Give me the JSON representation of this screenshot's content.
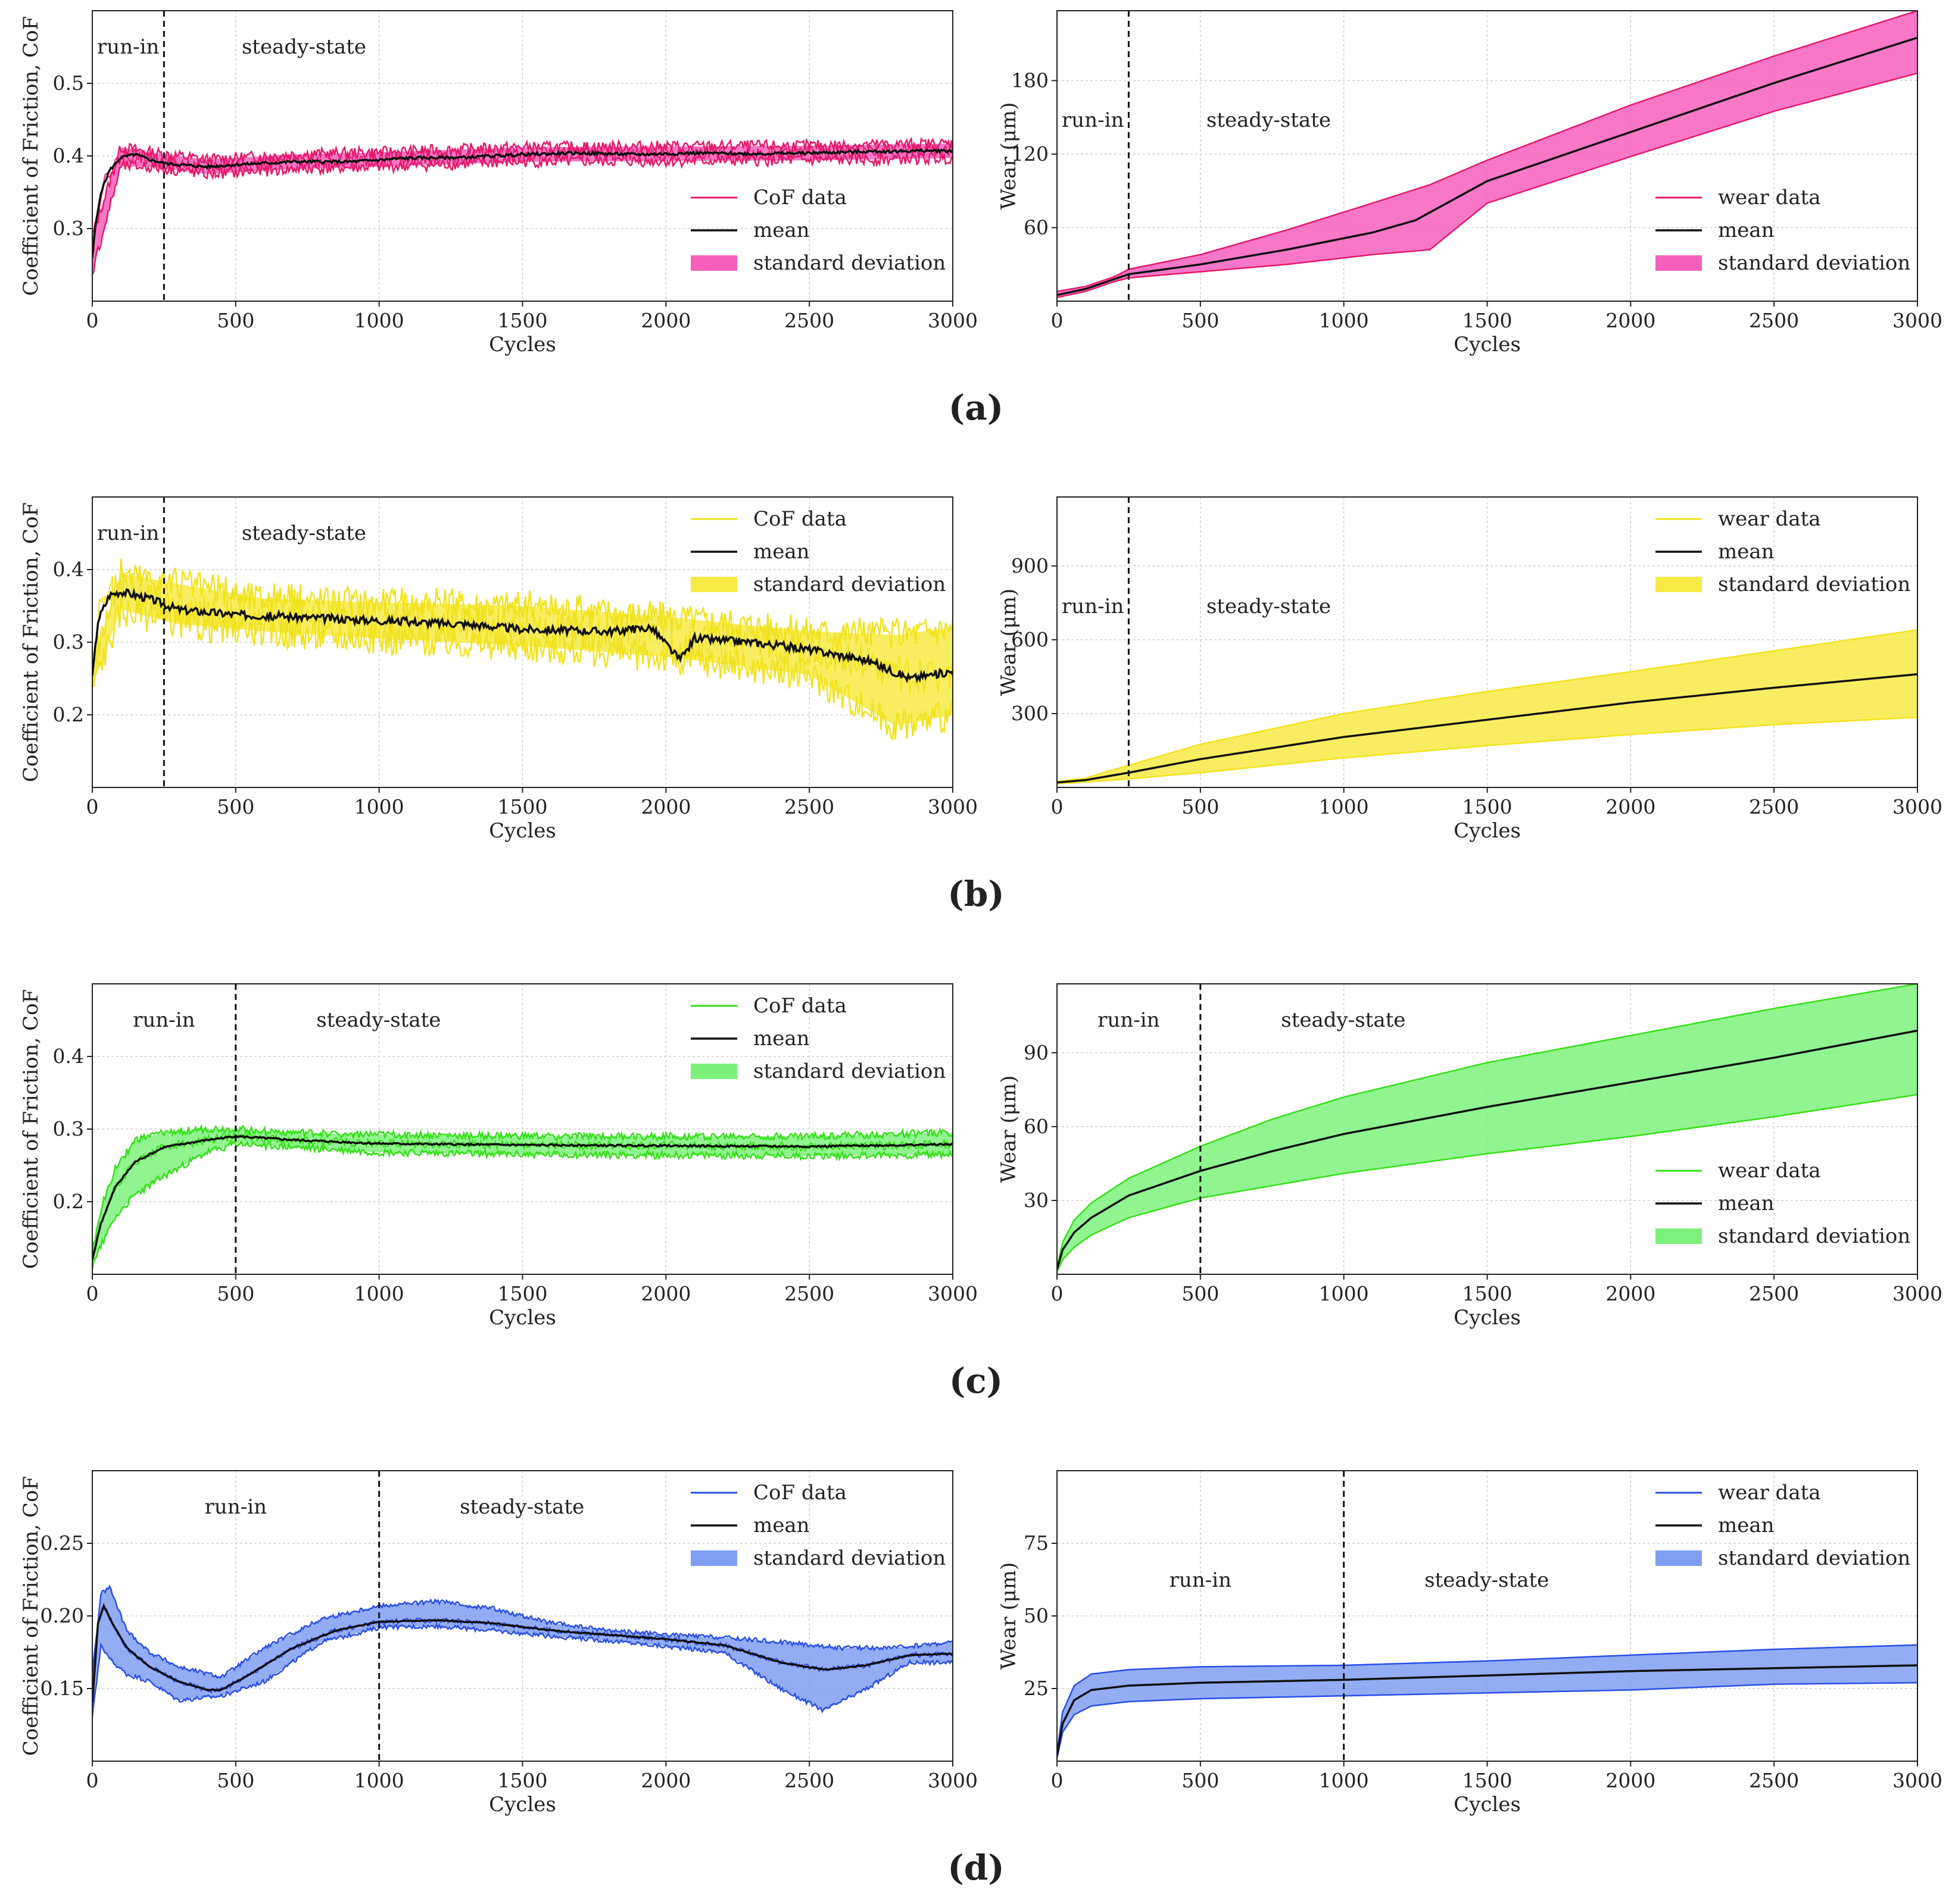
{
  "panel_captions": [
    "(a)",
    "(b)",
    "(c)",
    "(d)"
  ],
  "colors": {
    "pink": "#e6196a",
    "pink_fill": "#f75fbd",
    "yellow": "#f2e21c",
    "yellow_fill": "#f7ea45",
    "green": "#34e016",
    "green_fill": "#7cf27c",
    "blue": "#2a4fe8",
    "blue_fill": "#7f9ff2",
    "mean": "#111111"
  },
  "chart_data": [
    {
      "id": "a-cof",
      "row": 0,
      "col": 0,
      "type": "line",
      "kind": "cof",
      "xlabel": "Cycles",
      "ylabel": "Coefficient of Friction, CoF",
      "xlim": [
        0,
        3000
      ],
      "ylim": [
        0.2,
        0.6
      ],
      "xticks": [
        0,
        500,
        1000,
        1500,
        2000,
        2500,
        3000
      ],
      "xtick_labels": [
        "0",
        "500",
        "1000",
        "1500",
        "2000",
        "2500",
        "3000"
      ],
      "yticks": [
        0.3,
        0.4,
        0.5
      ],
      "ytick_labels": [
        "0.3",
        "0.4",
        "0.5"
      ],
      "boundary": 250,
      "regions": [
        "run-in",
        "steady-state"
      ],
      "region_label_pos": "top",
      "legend": "right-middle",
      "legend_entries": [
        "CoF data",
        "mean",
        "standard deviation"
      ],
      "color": "pink",
      "mean": {
        "x": [
          0,
          10,
          30,
          60,
          100,
          150,
          200,
          250,
          300,
          400,
          500,
          700,
          900,
          1100,
          1300,
          1500,
          1700,
          1900,
          2100,
          2300,
          2500,
          2700,
          2900,
          3000
        ],
        "y": [
          0.26,
          0.3,
          0.35,
          0.38,
          0.398,
          0.402,
          0.395,
          0.39,
          0.388,
          0.385,
          0.388,
          0.392,
          0.392,
          0.397,
          0.398,
          0.402,
          0.404,
          0.402,
          0.404,
          0.403,
          0.404,
          0.406,
          0.407,
          0.407
        ]
      },
      "upper": {
        "x": [
          0,
          100,
          200,
          400,
          700,
          1000,
          1500,
          2000,
          2500,
          3000
        ],
        "y": [
          0.29,
          0.412,
          0.405,
          0.395,
          0.402,
          0.405,
          0.412,
          0.413,
          0.414,
          0.417
        ]
      },
      "lower": {
        "x": [
          0,
          100,
          200,
          400,
          700,
          1000,
          1500,
          2000,
          2500,
          3000
        ],
        "y": [
          0.24,
          0.386,
          0.385,
          0.375,
          0.382,
          0.385,
          0.392,
          0.393,
          0.394,
          0.397
        ]
      },
      "noise": 0.008
    },
    {
      "id": "a-wear",
      "row": 0,
      "col": 1,
      "type": "line",
      "kind": "wear",
      "xlabel": "Cycles",
      "ylabel": "Wear (μm)",
      "xlim": [
        0,
        3000
      ],
      "ylim": [
        0,
        237
      ],
      "xticks": [
        0,
        500,
        1000,
        1500,
        2000,
        2500,
        3000
      ],
      "xtick_labels": [
        "0",
        "500",
        "1000",
        "1500",
        "2000",
        "2500",
        "3000"
      ],
      "yticks": [
        60,
        120,
        180
      ],
      "ytick_labels": [
        "60",
        "120",
        "180"
      ],
      "boundary": 250,
      "regions": [
        "run-in",
        "steady-state"
      ],
      "region_label_pos": "upper-middle",
      "legend": "right-middle",
      "legend_entries": [
        "wear data",
        "mean",
        "standard deviation"
      ],
      "color": "pink",
      "mean": {
        "x": [
          0,
          100,
          200,
          250,
          500,
          800,
          1100,
          1250,
          1500,
          2000,
          2500,
          3000
        ],
        "y": [
          5,
          10,
          18,
          22,
          30,
          42,
          56,
          66,
          98,
          138,
          178,
          215
        ]
      },
      "upper": {
        "x": [
          0,
          100,
          200,
          250,
          500,
          800,
          1100,
          1300,
          1500,
          2000,
          2500,
          3000
        ],
        "y": [
          8,
          12,
          20,
          26,
          38,
          58,
          80,
          95,
          115,
          160,
          200,
          237
        ]
      },
      "lower": {
        "x": [
          0,
          100,
          200,
          250,
          500,
          800,
          1100,
          1300,
          1500,
          2000,
          2500,
          3000
        ],
        "y": [
          3,
          8,
          16,
          19,
          24,
          30,
          38,
          42,
          80,
          118,
          155,
          186
        ]
      },
      "noise": 0
    },
    {
      "id": "b-cof",
      "row": 1,
      "col": 0,
      "type": "line",
      "kind": "cof",
      "xlabel": "Cycles",
      "ylabel": "Coefficient of Friction, CoF",
      "xlim": [
        0,
        3000
      ],
      "ylim": [
        0.1,
        0.5
      ],
      "xticks": [
        0,
        500,
        1000,
        1500,
        2000,
        2500,
        3000
      ],
      "xtick_labels": [
        "0",
        "500",
        "1000",
        "1500",
        "2000",
        "2500",
        "3000"
      ],
      "yticks": [
        0.2,
        0.3,
        0.4
      ],
      "ytick_labels": [
        "0.2",
        "0.3",
        "0.4"
      ],
      "boundary": 250,
      "regions": [
        "run-in",
        "steady-state"
      ],
      "region_label_pos": "top",
      "legend": "top-right",
      "legend_entries": [
        "CoF data",
        "mean",
        "standard deviation"
      ],
      "color": "yellow",
      "mean": {
        "x": [
          0,
          20,
          60,
          100,
          200,
          300,
          500,
          700,
          1000,
          1300,
          1500,
          1800,
          1950,
          2050,
          2100,
          2300,
          2500,
          2700,
          2850,
          3000
        ],
        "y": [
          0.25,
          0.33,
          0.365,
          0.37,
          0.36,
          0.345,
          0.338,
          0.335,
          0.33,
          0.325,
          0.318,
          0.315,
          0.32,
          0.275,
          0.305,
          0.3,
          0.29,
          0.275,
          0.25,
          0.26
        ]
      },
      "upper": {
        "x": [
          0,
          100,
          300,
          600,
          1000,
          1500,
          2000,
          2500,
          2800,
          3000
        ],
        "y": [
          0.27,
          0.395,
          0.38,
          0.36,
          0.355,
          0.35,
          0.335,
          0.315,
          0.31,
          0.32
        ]
      },
      "lower": {
        "x": [
          0,
          100,
          300,
          600,
          1000,
          1500,
          2000,
          2500,
          2800,
          3000
        ],
        "y": [
          0.24,
          0.345,
          0.325,
          0.315,
          0.305,
          0.295,
          0.28,
          0.255,
          0.185,
          0.2
        ]
      },
      "noise": 0.022
    },
    {
      "id": "b-wear",
      "row": 1,
      "col": 1,
      "type": "line",
      "kind": "wear",
      "xlabel": "Cycles",
      "ylabel": "Wear (μm)",
      "xlim": [
        0,
        3000
      ],
      "ylim": [
        0,
        1180
      ],
      "xticks": [
        0,
        500,
        1000,
        1500,
        2000,
        2500,
        3000
      ],
      "xtick_labels": [
        "0",
        "500",
        "1000",
        "1500",
        "2000",
        "2500",
        "3000"
      ],
      "yticks": [
        300,
        600,
        900
      ],
      "ytick_labels": [
        "300",
        "600",
        "900"
      ],
      "boundary": 250,
      "regions": [
        "run-in",
        "steady-state"
      ],
      "region_label_pos": "upper-middle",
      "legend": "top-right",
      "legend_entries": [
        "wear data",
        "mean",
        "standard deviation"
      ],
      "color": "yellow",
      "mean": {
        "x": [
          0,
          100,
          250,
          500,
          1000,
          1500,
          2000,
          2500,
          3000
        ],
        "y": [
          20,
          30,
          60,
          115,
          205,
          275,
          345,
          405,
          460
        ]
      },
      "upper": {
        "x": [
          0,
          100,
          250,
          500,
          1000,
          1500,
          2000,
          2500,
          3000
        ],
        "y": [
          25,
          38,
          90,
          175,
          300,
          390,
          470,
          555,
          640
        ]
      },
      "lower": {
        "x": [
          0,
          100,
          250,
          500,
          1000,
          1500,
          2000,
          2500,
          3000
        ],
        "y": [
          15,
          22,
          35,
          60,
          120,
          170,
          215,
          255,
          285
        ]
      },
      "noise": 0
    },
    {
      "id": "c-cof",
      "row": 2,
      "col": 0,
      "type": "line",
      "kind": "cof",
      "xlabel": "Cycles",
      "ylabel": "Coefficient of Friction, CoF",
      "xlim": [
        0,
        3000
      ],
      "ylim": [
        0.1,
        0.5
      ],
      "xticks": [
        0,
        500,
        1000,
        1500,
        2000,
        2500,
        3000
      ],
      "xtick_labels": [
        "0",
        "500",
        "1000",
        "1500",
        "2000",
        "2500",
        "3000"
      ],
      "yticks": [
        0.2,
        0.3,
        0.4
      ],
      "ytick_labels": [
        "0.2",
        "0.3",
        "0.4"
      ],
      "boundary": 500,
      "regions": [
        "run-in",
        "steady-state"
      ],
      "region_label_pos": "top",
      "legend": "top-right",
      "legend_entries": [
        "CoF data",
        "mean",
        "standard deviation"
      ],
      "color": "green",
      "mean": {
        "x": [
          0,
          30,
          80,
          150,
          250,
          400,
          500,
          700,
          1000,
          1500,
          2000,
          2500,
          3000
        ],
        "y": [
          0.12,
          0.17,
          0.22,
          0.255,
          0.275,
          0.285,
          0.29,
          0.285,
          0.28,
          0.278,
          0.277,
          0.276,
          0.279
        ]
      },
      "upper": {
        "x": [
          0,
          30,
          80,
          150,
          250,
          400,
          500,
          700,
          1000,
          1500,
          2000,
          2500,
          3000
        ],
        "y": [
          0.13,
          0.19,
          0.245,
          0.285,
          0.295,
          0.3,
          0.3,
          0.295,
          0.292,
          0.29,
          0.29,
          0.29,
          0.295
        ]
      },
      "lower": {
        "x": [
          0,
          30,
          80,
          150,
          250,
          400,
          500,
          700,
          1000,
          1500,
          2000,
          2500,
          3000
        ],
        "y": [
          0.11,
          0.14,
          0.18,
          0.21,
          0.235,
          0.268,
          0.28,
          0.275,
          0.268,
          0.265,
          0.264,
          0.263,
          0.265
        ]
      },
      "noise": 0.005
    },
    {
      "id": "c-wear",
      "row": 2,
      "col": 1,
      "type": "line",
      "kind": "wear",
      "xlabel": "Cycles",
      "ylabel": "Wear (μm)",
      "xlim": [
        0,
        3000
      ],
      "ylim": [
        0,
        118
      ],
      "xticks": [
        0,
        500,
        1000,
        1500,
        2000,
        2500,
        3000
      ],
      "xtick_labels": [
        "0",
        "500",
        "1000",
        "1500",
        "2000",
        "2500",
        "3000"
      ],
      "yticks": [
        30,
        60,
        90
      ],
      "ytick_labels": [
        "30",
        "60",
        "90"
      ],
      "boundary": 500,
      "regions": [
        "run-in",
        "steady-state"
      ],
      "region_label_pos": "top",
      "legend": "right-lower",
      "legend_entries": [
        "wear data",
        "mean",
        "standard deviation"
      ],
      "color": "green",
      "mean": {
        "x": [
          0,
          20,
          60,
          120,
          250,
          500,
          750,
          1000,
          1500,
          2000,
          2500,
          3000
        ],
        "y": [
          2,
          10,
          17,
          23,
          32,
          42,
          50,
          57,
          68,
          78,
          88,
          99
        ]
      },
      "upper": {
        "x": [
          0,
          20,
          60,
          120,
          250,
          500,
          750,
          1000,
          1500,
          2000,
          2500,
          3000
        ],
        "y": [
          3,
          13,
          22,
          29,
          39,
          52,
          63,
          72,
          86,
          97,
          108,
          118
        ]
      },
      "lower": {
        "x": [
          0,
          20,
          60,
          120,
          250,
          500,
          750,
          1000,
          1500,
          2000,
          2500,
          3000
        ],
        "y": [
          1,
          6,
          11,
          16,
          23,
          31,
          36,
          41,
          49,
          56,
          64,
          73
        ]
      },
      "noise": 0
    },
    {
      "id": "d-cof",
      "row": 3,
      "col": 0,
      "type": "line",
      "kind": "cof",
      "xlabel": "Cycles",
      "ylabel": "Coefficient of Friction, CoF",
      "xlim": [
        0,
        3000
      ],
      "ylim": [
        0.1,
        0.3
      ],
      "xticks": [
        0,
        500,
        1000,
        1500,
        2000,
        2500,
        3000
      ],
      "xtick_labels": [
        "0",
        "500",
        "1000",
        "1500",
        "2000",
        "2500",
        "3000"
      ],
      "yticks": [
        0.15,
        0.2,
        0.25
      ],
      "ytick_labels": [
        "0.15",
        "0.20",
        "0.25"
      ],
      "boundary": 1000,
      "regions": [
        "run-in",
        "steady-state"
      ],
      "region_label_pos": "top",
      "legend": "top-right",
      "legend_entries": [
        "CoF data",
        "mean",
        "standard deviation"
      ],
      "color": "blue",
      "mean": {
        "x": [
          0,
          20,
          40,
          70,
          120,
          200,
          300,
          400,
          450,
          550,
          700,
          850,
          1000,
          1200,
          1400,
          1600,
          1800,
          2000,
          2200,
          2400,
          2550,
          2700,
          2850,
          3000
        ],
        "y": [
          0.14,
          0.195,
          0.207,
          0.195,
          0.178,
          0.165,
          0.155,
          0.149,
          0.149,
          0.16,
          0.178,
          0.19,
          0.196,
          0.197,
          0.195,
          0.19,
          0.187,
          0.184,
          0.18,
          0.168,
          0.163,
          0.166,
          0.173,
          0.174
        ]
      },
      "upper": {
        "x": [
          0,
          30,
          60,
          120,
          200,
          300,
          450,
          600,
          800,
          1000,
          1200,
          1400,
          1600,
          1800,
          2000,
          2200,
          2400,
          2600,
          2800,
          3000
        ],
        "y": [
          0.16,
          0.215,
          0.22,
          0.19,
          0.175,
          0.165,
          0.158,
          0.178,
          0.198,
          0.207,
          0.21,
          0.205,
          0.195,
          0.19,
          0.187,
          0.185,
          0.182,
          0.178,
          0.178,
          0.182
        ]
      },
      "lower": {
        "x": [
          0,
          30,
          60,
          120,
          200,
          300,
          450,
          600,
          800,
          1000,
          1200,
          1400,
          1600,
          1800,
          2000,
          2200,
          2400,
          2550,
          2700,
          2850,
          3000
        ],
        "y": [
          0.13,
          0.18,
          0.17,
          0.16,
          0.155,
          0.142,
          0.145,
          0.155,
          0.182,
          0.192,
          0.193,
          0.19,
          0.186,
          0.183,
          0.179,
          0.175,
          0.15,
          0.135,
          0.15,
          0.168,
          0.168
        ]
      },
      "noise": 0.0015
    },
    {
      "id": "d-wear",
      "row": 3,
      "col": 1,
      "type": "line",
      "kind": "wear",
      "xlabel": "Cycles",
      "ylabel": "Wear (μm)",
      "xlim": [
        0,
        3000
      ],
      "ylim": [
        0,
        100
      ],
      "xticks": [
        0,
        500,
        1000,
        1500,
        2000,
        2500,
        3000
      ],
      "xtick_labels": [
        "0",
        "500",
        "1000",
        "1500",
        "2000",
        "2500",
        "3000"
      ],
      "yticks": [
        25,
        50,
        75
      ],
      "ytick_labels": [
        "25",
        "50",
        "75"
      ],
      "boundary": 1000,
      "regions": [
        "run-in",
        "steady-state"
      ],
      "region_label_pos": "upper-middle",
      "legend": "top-right",
      "legend_entries": [
        "wear data",
        "mean",
        "standard deviation"
      ],
      "color": "blue",
      "mean": {
        "x": [
          0,
          20,
          60,
          120,
          250,
          500,
          1000,
          1500,
          2000,
          2500,
          3000
        ],
        "y": [
          2,
          13,
          21,
          24.5,
          26,
          27,
          28,
          29.5,
          31,
          32,
          33
        ]
      },
      "upper": {
        "x": [
          0,
          20,
          60,
          120,
          250,
          500,
          1000,
          1500,
          2000,
          2500,
          3000
        ],
        "y": [
          3,
          17,
          26,
          30,
          31.5,
          32.5,
          33,
          34.5,
          36.5,
          38.5,
          40
        ]
      },
      "lower": {
        "x": [
          0,
          20,
          60,
          120,
          250,
          500,
          1000,
          1500,
          2000,
          2500,
          3000
        ],
        "y": [
          1,
          10,
          16,
          19,
          20.5,
          21.5,
          22.5,
          23.5,
          24.5,
          26.5,
          27
        ]
      },
      "noise": 0
    }
  ]
}
